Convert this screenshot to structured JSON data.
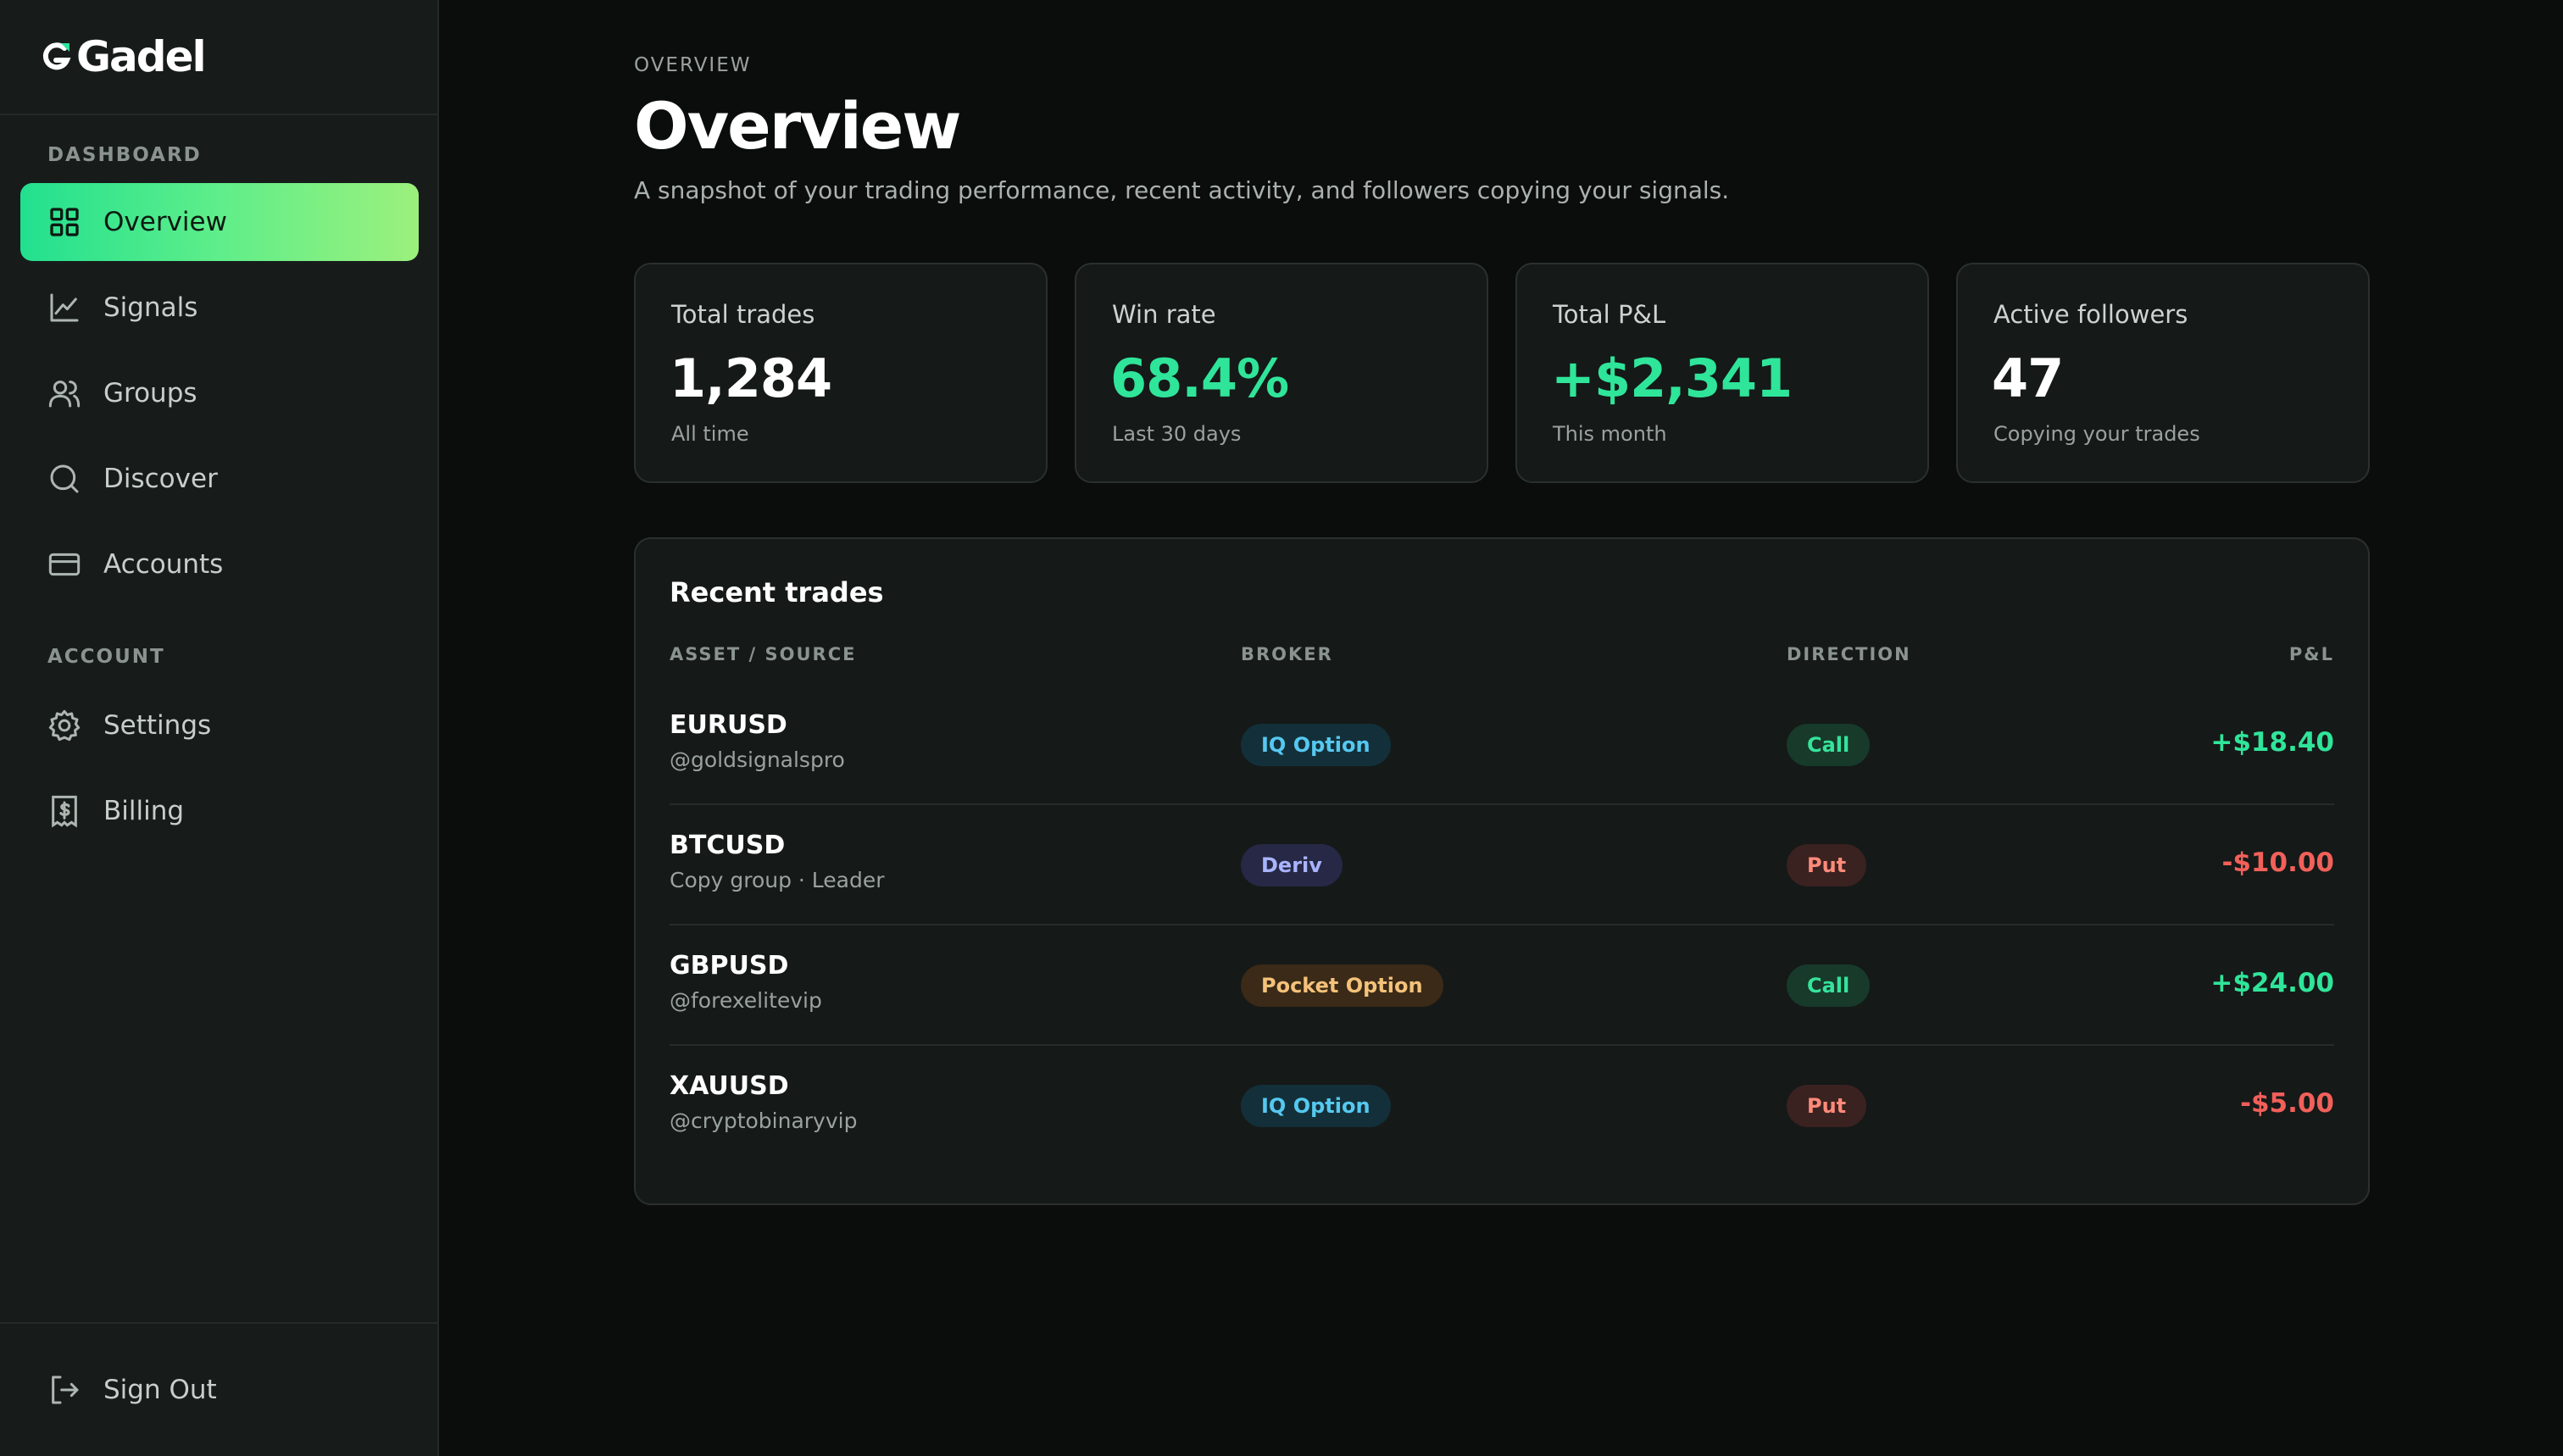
{
  "brand": {
    "name": "Gadel"
  },
  "sidebar": {
    "dashboard_label": "DASHBOARD",
    "account_label": "ACCOUNT",
    "nav": [
      {
        "label": "Overview",
        "icon": "grid-icon",
        "active": true
      },
      {
        "label": "Signals",
        "icon": "line-chart-icon"
      },
      {
        "label": "Groups",
        "icon": "users-icon"
      },
      {
        "label": "Discover",
        "icon": "search-icon"
      },
      {
        "label": "Accounts",
        "icon": "credit-card-icon"
      }
    ],
    "account_nav": [
      {
        "label": "Settings",
        "icon": "gear-icon"
      },
      {
        "label": "Billing",
        "icon": "receipt-dollar-icon"
      }
    ],
    "sign_out": "Sign Out"
  },
  "header": {
    "eyebrow": "OVERVIEW",
    "title": "Overview",
    "subtitle": "A snapshot of your trading performance, recent activity, and followers copying your signals."
  },
  "stats": [
    {
      "label": "Total trades",
      "value": "1,284",
      "sub": "All time"
    },
    {
      "label": "Win rate",
      "value": "68.4%",
      "sub": "Last 30 days"
    },
    {
      "label": "Total P&L",
      "value": "+$2,341",
      "sub": "This month"
    },
    {
      "label": "Active followers",
      "value": "47",
      "sub": "Copying your trades"
    }
  ],
  "trades": {
    "title": "Recent trades",
    "columns": [
      "ASSET / SOURCE",
      "BROKER",
      "DIRECTION",
      "P&L"
    ],
    "rows": [
      {
        "asset": "EURUSD",
        "source": "@goldsignalspro",
        "broker": "IQ Option",
        "direction": "Call",
        "pnl": "+$18.40"
      },
      {
        "asset": "BTCUSD",
        "source": "Copy group · Leader",
        "broker": "Deriv",
        "direction": "Put",
        "pnl": "-$10.00"
      },
      {
        "asset": "GBPUSD",
        "source": "@forexelitevip",
        "broker": "Pocket Option",
        "direction": "Call",
        "pnl": "+$24.00"
      },
      {
        "asset": "XAUUSD",
        "source": "@cryptobinaryvip",
        "broker": "IQ Option",
        "direction": "Put",
        "pnl": "-$5.00"
      }
    ]
  },
  "colors": {
    "accent": "#2fe59a",
    "negative": "#f2605a",
    "background": "#0b0d0d",
    "sidebar": "#171c1b"
  }
}
